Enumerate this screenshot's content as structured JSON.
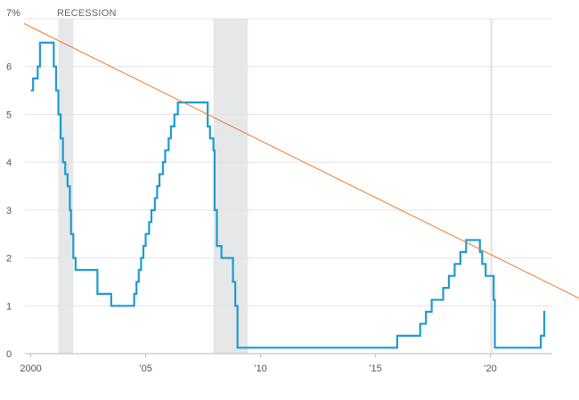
{
  "chart_data": {
    "type": "line",
    "y_unit_label": "7%",
    "recession_label": "RECESSION",
    "ylim": [
      0,
      7
    ],
    "xlim": [
      1999.9,
      2022.7
    ],
    "yticks": [
      0,
      1,
      2,
      3,
      4,
      5,
      6,
      7
    ],
    "ytick_labels": [
      "0",
      "1",
      "2",
      "3",
      "4",
      "5",
      "6",
      "7%"
    ],
    "xticks": [
      2000,
      2005,
      2010,
      2015,
      2020
    ],
    "xtick_labels": [
      "2000",
      "’05",
      "’10",
      "’15",
      "’20"
    ],
    "grid": true,
    "colors": {
      "series": "#1f9bcf",
      "trend": "#f07a2a",
      "recession": "#e6e7e9",
      "grid": "#e3e3e3"
    },
    "recessions": [
      {
        "start": 2001.2,
        "end": 2001.85
      },
      {
        "start": 2007.95,
        "end": 2009.45
      },
      {
        "start": 2020.0,
        "end": 2020.1
      }
    ],
    "series": [
      {
        "step": true,
        "points": [
          [
            2000.0,
            5.5
          ],
          [
            2000.1,
            5.75
          ],
          [
            2000.3,
            6.0
          ],
          [
            2000.4,
            6.5
          ],
          [
            2001.0,
            6.0
          ],
          [
            2001.1,
            5.5
          ],
          [
            2001.2,
            5.0
          ],
          [
            2001.3,
            4.5
          ],
          [
            2001.4,
            4.0
          ],
          [
            2001.5,
            3.75
          ],
          [
            2001.6,
            3.5
          ],
          [
            2001.7,
            3.0
          ],
          [
            2001.75,
            2.5
          ],
          [
            2001.85,
            2.0
          ],
          [
            2001.95,
            1.75
          ],
          [
            2002.9,
            1.25
          ],
          [
            2003.5,
            1.0
          ],
          [
            2004.5,
            1.25
          ],
          [
            2004.6,
            1.5
          ],
          [
            2004.7,
            1.75
          ],
          [
            2004.8,
            2.0
          ],
          [
            2004.9,
            2.25
          ],
          [
            2005.0,
            2.5
          ],
          [
            2005.15,
            2.75
          ],
          [
            2005.25,
            3.0
          ],
          [
            2005.4,
            3.25
          ],
          [
            2005.5,
            3.5
          ],
          [
            2005.6,
            3.75
          ],
          [
            2005.75,
            4.0
          ],
          [
            2005.85,
            4.25
          ],
          [
            2006.0,
            4.5
          ],
          [
            2006.1,
            4.75
          ],
          [
            2006.25,
            5.0
          ],
          [
            2006.4,
            5.25
          ],
          [
            2007.7,
            4.75
          ],
          [
            2007.8,
            4.5
          ],
          [
            2007.95,
            4.25
          ],
          [
            2008.0,
            3.0
          ],
          [
            2008.1,
            2.25
          ],
          [
            2008.3,
            2.0
          ],
          [
            2008.8,
            1.5
          ],
          [
            2008.9,
            1.0
          ],
          [
            2009.0,
            0.125
          ],
          [
            2015.95,
            0.375
          ],
          [
            2016.95,
            0.625
          ],
          [
            2017.2,
            0.875
          ],
          [
            2017.45,
            1.125
          ],
          [
            2017.95,
            1.375
          ],
          [
            2018.2,
            1.625
          ],
          [
            2018.45,
            1.875
          ],
          [
            2018.7,
            2.125
          ],
          [
            2018.95,
            2.375
          ],
          [
            2019.55,
            2.125
          ],
          [
            2019.65,
            1.875
          ],
          [
            2019.8,
            1.625
          ],
          [
            2020.15,
            1.125
          ],
          [
            2020.2,
            0.125
          ],
          [
            2022.2,
            0.375
          ],
          [
            2022.35,
            0.875
          ]
        ],
        "end_x": 2022.4
      }
    ],
    "trendline": {
      "from": [
        1999.7,
        6.9
      ],
      "to": [
        2023.9,
        1.15
      ]
    }
  }
}
